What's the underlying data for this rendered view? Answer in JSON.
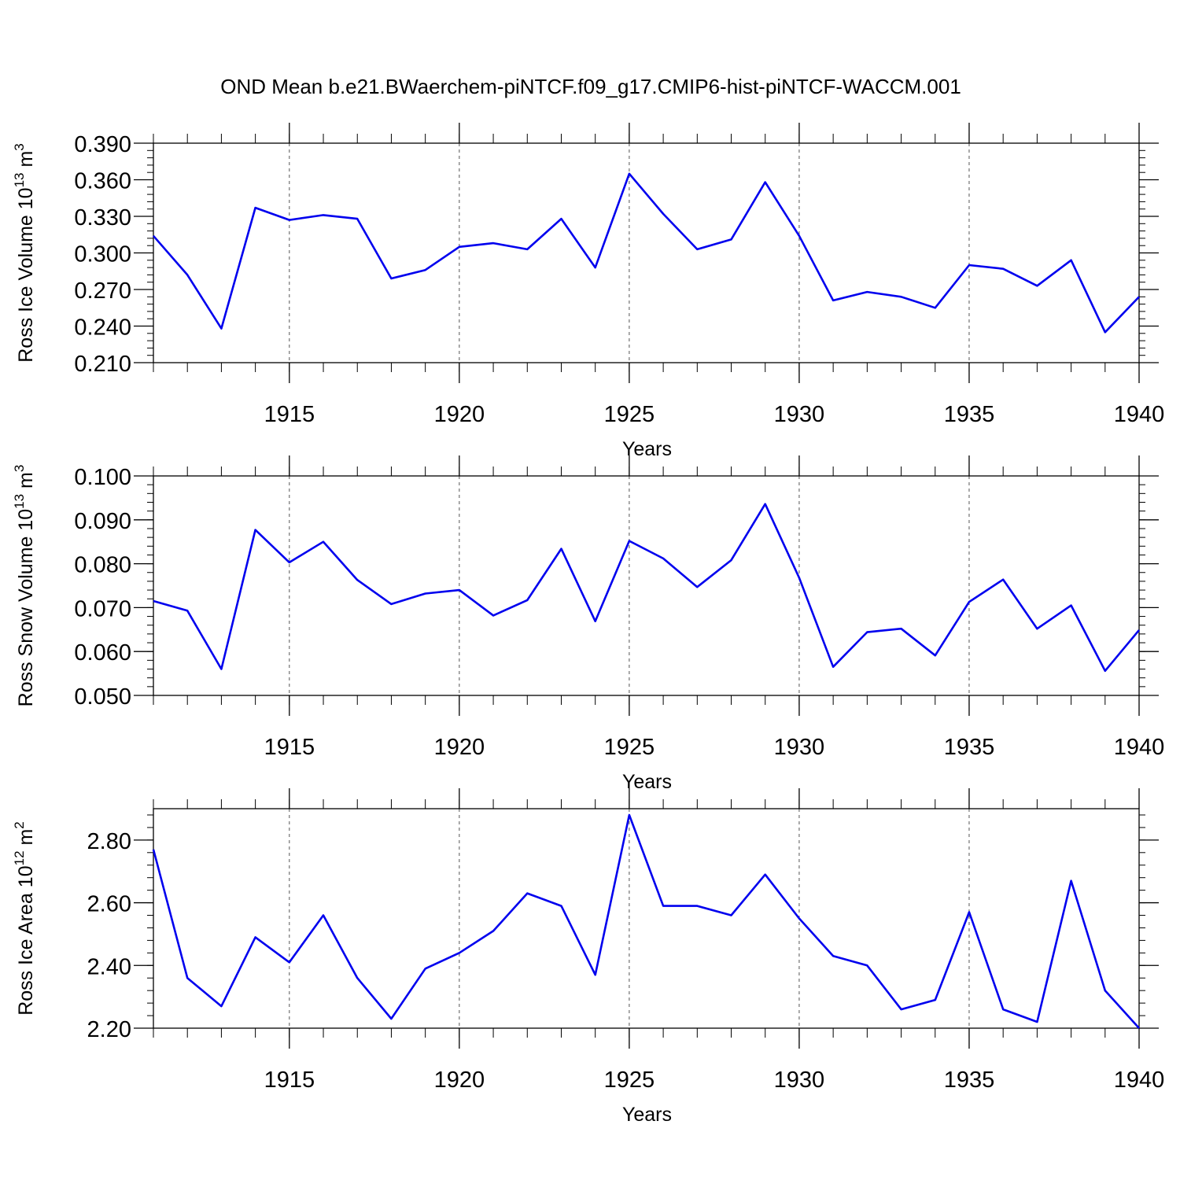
{
  "title": "OND Mean b.e21.BWaerchem-piNTCF.f09_g17.CMIP6-hist-piNTCF-WACCM.001",
  "chart_data": [
    {
      "type": "line",
      "ylabel_main": "Ross Ice Volume 10",
      "ylabel_sup": "13",
      "ylabel_unit": "m",
      "ylabel_unit_sup": "3",
      "xlabel": "Years",
      "xlim": [
        1911,
        1940
      ],
      "ylim": [
        0.21,
        0.39
      ],
      "yticks": [
        {
          "v": 0.21,
          "label": "0.210"
        },
        {
          "v": 0.24,
          "label": "0.240"
        },
        {
          "v": 0.27,
          "label": "0.270"
        },
        {
          "v": 0.3,
          "label": "0.300"
        },
        {
          "v": 0.33,
          "label": "0.330"
        },
        {
          "v": 0.36,
          "label": "0.360"
        },
        {
          "v": 0.39,
          "label": "0.390"
        }
      ],
      "xticks": [
        {
          "v": 1915,
          "label": "1915"
        },
        {
          "v": 1920,
          "label": "1920"
        },
        {
          "v": 1925,
          "label": "1925"
        },
        {
          "v": 1930,
          "label": "1930"
        },
        {
          "v": 1935,
          "label": "1935"
        },
        {
          "v": 1940,
          "label": "1940"
        }
      ],
      "grid_x": [
        1915,
        1920,
        1925,
        1930,
        1935
      ],
      "color": "#0000ee",
      "x": [
        1911,
        1912,
        1913,
        1914,
        1915,
        1916,
        1917,
        1918,
        1919,
        1920,
        1921,
        1922,
        1923,
        1924,
        1925,
        1926,
        1927,
        1928,
        1929,
        1930,
        1931,
        1932,
        1933,
        1934,
        1935,
        1936,
        1937,
        1938,
        1939,
        1940
      ],
      "y": [
        0.314,
        0.282,
        0.238,
        0.337,
        0.327,
        0.331,
        0.328,
        0.279,
        0.286,
        0.305,
        0.308,
        0.303,
        0.328,
        0.288,
        0.365,
        0.332,
        0.303,
        0.311,
        0.358,
        0.314,
        0.261,
        0.268,
        0.264,
        0.255,
        0.29,
        0.287,
        0.273,
        0.294,
        0.235,
        0.264
      ]
    },
    {
      "type": "line",
      "ylabel_main": "Ross Snow Volume 10",
      "ylabel_sup": "13",
      "ylabel_unit": "m",
      "ylabel_unit_sup": "3",
      "xlabel": "Years",
      "xlim": [
        1911,
        1940
      ],
      "ylim": [
        0.05,
        0.1
      ],
      "yticks": [
        {
          "v": 0.05,
          "label": "0.050"
        },
        {
          "v": 0.06,
          "label": "0.060"
        },
        {
          "v": 0.07,
          "label": "0.070"
        },
        {
          "v": 0.08,
          "label": "0.080"
        },
        {
          "v": 0.09,
          "label": "0.090"
        },
        {
          "v": 0.1,
          "label": "0.100"
        }
      ],
      "xticks": [
        {
          "v": 1915,
          "label": "1915"
        },
        {
          "v": 1920,
          "label": "1920"
        },
        {
          "v": 1925,
          "label": "1925"
        },
        {
          "v": 1930,
          "label": "1930"
        },
        {
          "v": 1935,
          "label": "1935"
        },
        {
          "v": 1940,
          "label": "1940"
        }
      ],
      "grid_x": [
        1915,
        1920,
        1925,
        1930,
        1935
      ],
      "color": "#0000ee",
      "x": [
        1911,
        1912,
        1913,
        1914,
        1915,
        1916,
        1917,
        1918,
        1919,
        1920,
        1921,
        1922,
        1923,
        1924,
        1925,
        1926,
        1927,
        1928,
        1929,
        1930,
        1931,
        1932,
        1933,
        1934,
        1935,
        1936,
        1937,
        1938,
        1939,
        1940
      ],
      "y": [
        0.0715,
        0.0693,
        0.056,
        0.0877,
        0.0803,
        0.085,
        0.0763,
        0.0708,
        0.0732,
        0.074,
        0.0682,
        0.0717,
        0.0834,
        0.0669,
        0.0852,
        0.0812,
        0.0747,
        0.0808,
        0.0936,
        0.0768,
        0.0565,
        0.0644,
        0.0652,
        0.0591,
        0.0713,
        0.0764,
        0.0652,
        0.0705,
        0.0556,
        0.0649
      ]
    },
    {
      "type": "line",
      "ylabel_main": "Ross Ice Area 10",
      "ylabel_sup": "12",
      "ylabel_unit": "m",
      "ylabel_unit_sup": "2",
      "xlabel": "Years",
      "xlim": [
        1911,
        1940
      ],
      "ylim": [
        2.2,
        2.9
      ],
      "yticks": [
        {
          "v": 2.2,
          "label": "2.20"
        },
        {
          "v": 2.4,
          "label": "2.40"
        },
        {
          "v": 2.6,
          "label": "2.60"
        },
        {
          "v": 2.8,
          "label": "2.80"
        }
      ],
      "xticks": [
        {
          "v": 1915,
          "label": "1915"
        },
        {
          "v": 1920,
          "label": "1920"
        },
        {
          "v": 1925,
          "label": "1925"
        },
        {
          "v": 1930,
          "label": "1930"
        },
        {
          "v": 1935,
          "label": "1935"
        },
        {
          "v": 1940,
          "label": "1940"
        }
      ],
      "grid_x": [
        1915,
        1920,
        1925,
        1930,
        1935
      ],
      "color": "#0000ee",
      "x": [
        1911,
        1912,
        1913,
        1914,
        1915,
        1916,
        1917,
        1918,
        1919,
        1920,
        1921,
        1922,
        1923,
        1924,
        1925,
        1926,
        1927,
        1928,
        1929,
        1930,
        1931,
        1932,
        1933,
        1934,
        1935,
        1936,
        1937,
        1938,
        1939,
        1940
      ],
      "y": [
        2.77,
        2.36,
        2.27,
        2.49,
        2.41,
        2.56,
        2.36,
        2.23,
        2.39,
        2.44,
        2.51,
        2.63,
        2.59,
        2.37,
        2.88,
        2.59,
        2.59,
        2.56,
        2.69,
        2.55,
        2.43,
        2.4,
        2.26,
        2.29,
        2.57,
        2.26,
        2.22,
        2.67,
        2.32,
        2.2
      ]
    }
  ]
}
